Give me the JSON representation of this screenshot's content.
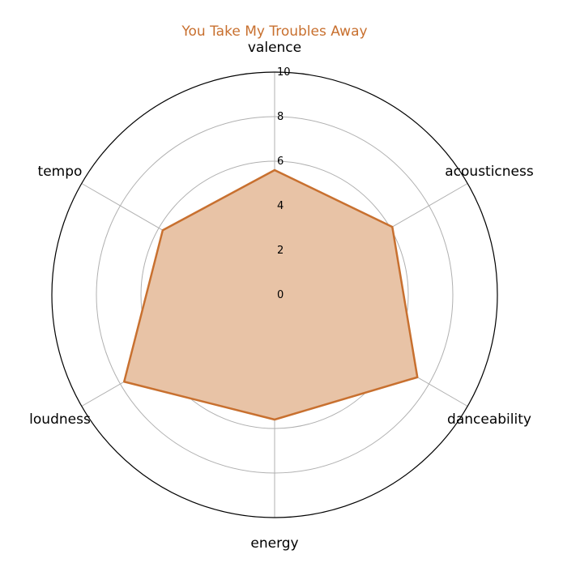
{
  "chart_data": {
    "type": "radar",
    "title": "You Take My Troubles Away",
    "axes": [
      "valence",
      "acousticness",
      "danceability",
      "energy",
      "loudness",
      "tempo"
    ],
    "rlim": [
      0,
      10
    ],
    "rticks": [
      "0",
      "2",
      "4",
      "6",
      "8",
      "10"
    ],
    "grid": true,
    "series": [
      {
        "values": [
          5.6,
          6.1,
          7.4,
          5.6,
          7.8,
          5.8
        ]
      }
    ]
  },
  "colors": {
    "series_line": "#c8702f",
    "series_fill": "#e8c3a6",
    "title": "#c8702f",
    "grid": "#b0b0b0",
    "outer_ring": "#000000"
  }
}
